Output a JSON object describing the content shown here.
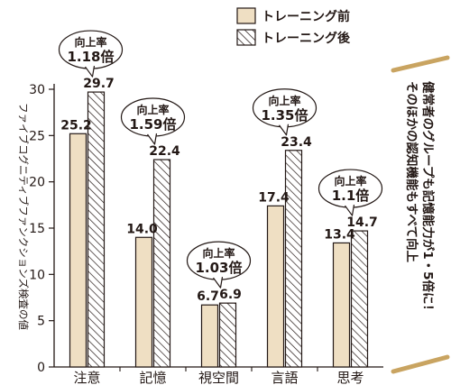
{
  "chart_data": {
    "type": "bar",
    "title": "",
    "xlabel": "",
    "ylabel": "ファイブコグニティブファンクションズ検査の値",
    "ylim": [
      0,
      30
    ],
    "yticks": [
      0,
      5,
      10,
      15,
      20,
      25,
      30
    ],
    "grid": false,
    "legend_position": "top-right",
    "categories": [
      "注意",
      "記憶",
      "視空間",
      "言語",
      "思考"
    ],
    "series": [
      {
        "name": "トレーニング前",
        "values": [
          25.2,
          14.0,
          6.7,
          17.4,
          13.4
        ],
        "labels": [
          "25.2",
          "14.0",
          "6.7",
          "17.4",
          "13.4"
        ],
        "color": "#efdfc3",
        "pattern": "solid"
      },
      {
        "name": "トレーニング後",
        "values": [
          29.7,
          22.4,
          6.9,
          23.4,
          14.7
        ],
        "labels": [
          "29.7",
          "22.4",
          "6.9",
          "23.4",
          "14.7"
        ],
        "color": "#ffffff",
        "pattern": "hatched"
      }
    ],
    "annotations": [
      {
        "category": "注意",
        "title": "向上率",
        "value": "1.18倍"
      },
      {
        "category": "記憶",
        "title": "向上率",
        "value": "1.59倍"
      },
      {
        "category": "視空間",
        "title": "向上率",
        "value": "1.03倍"
      },
      {
        "category": "言語",
        "title": "向上率",
        "value": "1.35倍"
      },
      {
        "category": "思考",
        "title": "向上率",
        "value": "1.1倍"
      }
    ],
    "side_note": [
      "健常者のグループも記憶能力が1・5倍に！",
      "そのほかの認知機能もすべて向上"
    ]
  },
  "colors": {
    "before_fill": "#efdfc3",
    "bracket": "#c9a461",
    "ink": "#231815"
  }
}
